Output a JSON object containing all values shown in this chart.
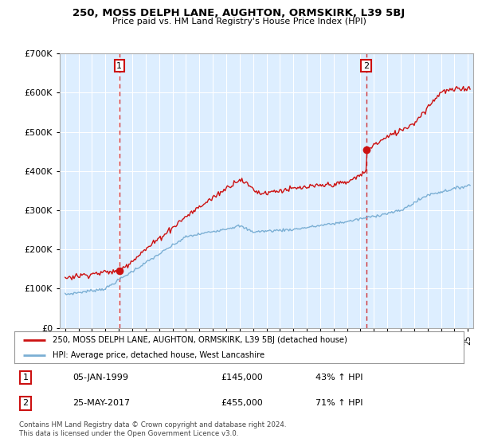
{
  "title": "250, MOSS DELPH LANE, AUGHTON, ORMSKIRK, L39 5BJ",
  "subtitle": "Price paid vs. HM Land Registry's House Price Index (HPI)",
  "legend_line1": "250, MOSS DELPH LANE, AUGHTON, ORMSKIRK, L39 5BJ (detached house)",
  "legend_line2": "HPI: Average price, detached house, West Lancashire",
  "footnote1": "Contains HM Land Registry data © Crown copyright and database right 2024.",
  "footnote2": "This data is licensed under the Open Government Licence v3.0.",
  "annotation1_label": "1",
  "annotation1_date": "05-JAN-1999",
  "annotation1_price": "£145,000",
  "annotation1_hpi": "43% ↑ HPI",
  "annotation2_label": "2",
  "annotation2_date": "25-MAY-2017",
  "annotation2_price": "£455,000",
  "annotation2_hpi": "71% ↑ HPI",
  "sale1_year": 1999.04,
  "sale1_value": 145000,
  "sale2_year": 2017.42,
  "sale2_value": 455000,
  "ylim": [
    0,
    700000
  ],
  "xlim_start": 1994.6,
  "xlim_end": 2025.4,
  "hpi_color": "#7bafd4",
  "price_color": "#cc1111",
  "vline_color": "#cc1111",
  "background_color": "#ffffff",
  "plot_bg_color": "#ddeeff",
  "grid_color": "#ffffff"
}
